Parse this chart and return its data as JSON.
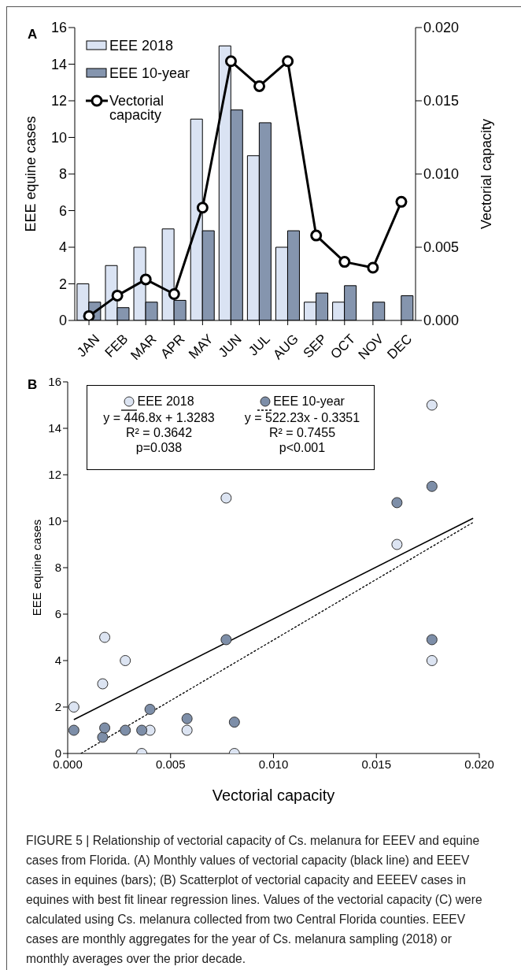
{
  "chart_data": [
    {
      "type": "bar",
      "title": "A",
      "categories": [
        "JAN",
        "FEB",
        "MAR",
        "APR",
        "MAY",
        "JUN",
        "JUL",
        "AUG",
        "SEP",
        "OCT",
        "NOV",
        "DEC"
      ],
      "ylabel": "EEE equine cases",
      "y2label": "Vectorial capacity",
      "ylim": [
        0,
        16
      ],
      "yticks": [
        0,
        2,
        4,
        6,
        8,
        10,
        12,
        14,
        16
      ],
      "y2lim": [
        0,
        0.02
      ],
      "y2ticks": [
        {
          "value": 0,
          "label": "0.000"
        },
        {
          "value": 0.005,
          "label": "0.005"
        },
        {
          "value": 0.01,
          "label": "0.010"
        },
        {
          "value": 0.015,
          "label": "0.015"
        },
        {
          "value": 0.02,
          "label": "0.020"
        }
      ],
      "legend": "top left",
      "marker": "circle",
      "series": [
        {
          "name": "EEE 2018",
          "color": "#dae3f3",
          "values": [
            2,
            3,
            4,
            5,
            11,
            15,
            9,
            4,
            1,
            1,
            0,
            0
          ]
        },
        {
          "name": "EEE 10-year",
          "color": "#8595ae",
          "values": [
            1,
            0.7,
            1,
            1.1,
            4.9,
            11.5,
            10.8,
            4.9,
            1.5,
            1.9,
            1,
            1.35
          ]
        },
        {
          "name": "Vectorial capacity",
          "type": "line",
          "axis": "y2",
          "color": "#000000",
          "values": [
            0.0003,
            0.0017,
            0.0028,
            0.0018,
            0.0077,
            0.0177,
            0.016,
            0.0177,
            0.0058,
            0.004,
            0.0036,
            0.0081
          ]
        }
      ]
    },
    {
      "type": "scatter",
      "title": "B",
      "xlabel": "Vectorial capacity",
      "ylabel": "EEE equine cases",
      "xlim": [
        0,
        0.02
      ],
      "xticks": [
        {
          "value": 0,
          "label": "0.000"
        },
        {
          "value": 0.005,
          "label": "0.005"
        },
        {
          "value": 0.01,
          "label": "0.010"
        },
        {
          "value": 0.015,
          "label": "0.015"
        },
        {
          "value": 0.02,
          "label": "0.020"
        }
      ],
      "ylim": [
        0,
        16
      ],
      "yticks": [
        0,
        2,
        4,
        6,
        8,
        10,
        12,
        14,
        16
      ],
      "legend": "top left",
      "series": [
        {
          "name": "EEE 2018",
          "color": "#dce4f2",
          "marker": "circle",
          "x": [
            0.0003,
            0.0017,
            0.0028,
            0.0018,
            0.0077,
            0.0177,
            0.016,
            0.0177,
            0.0058,
            0.004,
            0.0036,
            0.0081
          ],
          "values": [
            2,
            3,
            4,
            5,
            11,
            15,
            9,
            4,
            1,
            1,
            0,
            0
          ]
        },
        {
          "name": "EEE 10-year",
          "color": "#7d8ea8",
          "marker": "circle",
          "x": [
            0.0003,
            0.0017,
            0.0028,
            0.0018,
            0.0077,
            0.0177,
            0.016,
            0.0177,
            0.0058,
            0.004,
            0.0036,
            0.0081
          ],
          "values": [
            1,
            0.7,
            1,
            1.1,
            4.9,
            11.5,
            10.8,
            4.9,
            1.5,
            1.9,
            1,
            1.35
          ]
        },
        {
          "type": "line",
          "color": "#000000",
          "line_style": "solid",
          "marker": "none",
          "x": [
            0.0003,
            0.0197
          ],
          "values": [
            1.46,
            10.13
          ]
        },
        {
          "type": "line",
          "color": "#000000",
          "line_style": "dotted",
          "marker": "none",
          "x": [
            0.00064,
            0.0197
          ],
          "values": [
            0,
            9.95
          ]
        }
      ],
      "annotations": [
        "y = 446.8x + 1.3283",
        "R² = 0.3642",
        "p=0.038",
        "y = 522.23x - 0.3351",
        "R² = 0.7455",
        "p<0.001",
        "FIGURE 5 | Relationship of vectorial capacity of Cs. melanura for EEEV and equine cases from Florida. (A) Monthly values of vectorial capacity (black line) and EEEV cases in equines (bars); (B) Scatterplot of vectorial capacity and EEEEV cases in equines with best fit linear regression lines. Values of the vectorial capacity (C) were calculated using Cs. melanura collected from two Central Florida counties. EEEV cases are monthly aggregates for the year of Cs. melanura sampling (2018) or monthly averages over the prior decade."
      ]
    }
  ]
}
